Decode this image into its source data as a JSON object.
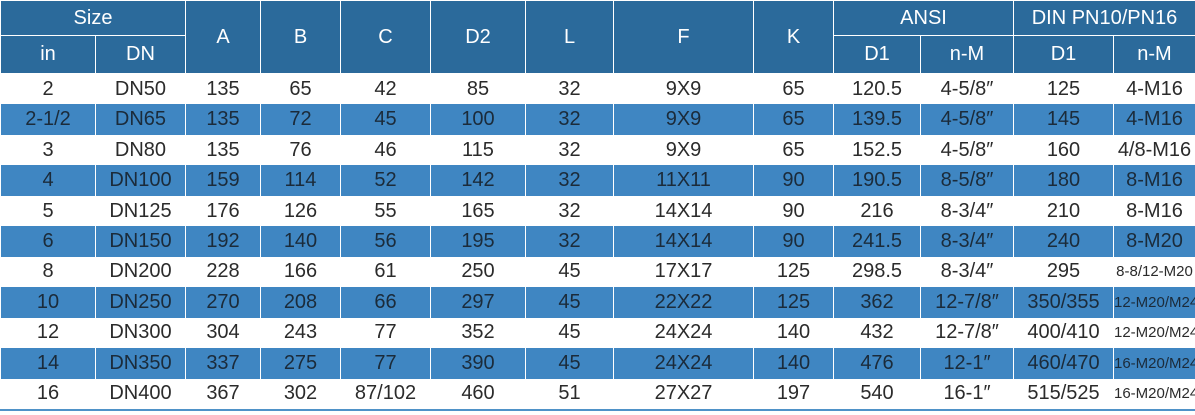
{
  "header": {
    "size": "Size",
    "in": "in",
    "dn": "DN",
    "a": "A",
    "b": "B",
    "c": "C",
    "d2": "D2",
    "l": "L",
    "f": "F",
    "k": "K",
    "ansi": "ANSI",
    "din": "DIN PN10/PN16",
    "ansi_d1": "D1",
    "ansi_nm": "n-M",
    "din_d1": "D1",
    "din_nm": "n-M"
  },
  "rows": [
    {
      "in": "2",
      "dn": "DN50",
      "a": "135",
      "b": "65",
      "c": "42",
      "d2": "85",
      "l": "32",
      "f": "9X9",
      "k": "65",
      "ansi_d1": "120.5",
      "ansi_nm": "4-5/8″",
      "din_d1": "125",
      "din_nm": "4-M16"
    },
    {
      "in": "2-1/2",
      "dn": "DN65",
      "a": "135",
      "b": "72",
      "c": "45",
      "d2": "100",
      "l": "32",
      "f": "9X9",
      "k": "65",
      "ansi_d1": "139.5",
      "ansi_nm": "4-5/8″",
      "din_d1": "145",
      "din_nm": "4-M16"
    },
    {
      "in": "3",
      "dn": "DN80",
      "a": "135",
      "b": "76",
      "c": "46",
      "d2": "115",
      "l": "32",
      "f": "9X9",
      "k": "65",
      "ansi_d1": "152.5",
      "ansi_nm": "4-5/8″",
      "din_d1": "160",
      "din_nm": "4/8-M16"
    },
    {
      "in": "4",
      "dn": "DN100",
      "a": "159",
      "b": "114",
      "c": "52",
      "d2": "142",
      "l": "32",
      "f": "11X11",
      "k": "90",
      "ansi_d1": "190.5",
      "ansi_nm": "8-5/8″",
      "din_d1": "180",
      "din_nm": "8-M16"
    },
    {
      "in": "5",
      "dn": "DN125",
      "a": "176",
      "b": "126",
      "c": "55",
      "d2": "165",
      "l": "32",
      "f": "14X14",
      "k": "90",
      "ansi_d1": "216",
      "ansi_nm": "8-3/4″",
      "din_d1": "210",
      "din_nm": "8-M16"
    },
    {
      "in": "6",
      "dn": "DN150",
      "a": "192",
      "b": "140",
      "c": "56",
      "d2": "195",
      "l": "32",
      "f": "14X14",
      "k": "90",
      "ansi_d1": "241.5",
      "ansi_nm": "8-3/4″",
      "din_d1": "240",
      "din_nm": "8-M20"
    },
    {
      "in": "8",
      "dn": "DN200",
      "a": "228",
      "b": "166",
      "c": "61",
      "d2": "250",
      "l": "45",
      "f": "17X17",
      "k": "125",
      "ansi_d1": "298.5",
      "ansi_nm": "8-3/4″",
      "din_d1": "295",
      "din_nm": "8-8/12-M20"
    },
    {
      "in": "10",
      "dn": "DN250",
      "a": "270",
      "b": "208",
      "c": "66",
      "d2": "297",
      "l": "45",
      "f": "22X22",
      "k": "125",
      "ansi_d1": "362",
      "ansi_nm": "12-7/8″",
      "din_d1": "350/355",
      "din_nm": "12-M20/M24"
    },
    {
      "in": "12",
      "dn": "DN300",
      "a": "304",
      "b": "243",
      "c": "77",
      "d2": "352",
      "l": "45",
      "f": "24X24",
      "k": "140",
      "ansi_d1": "432",
      "ansi_nm": "12-7/8″",
      "din_d1": "400/410",
      "din_nm": "12-M20/M24"
    },
    {
      "in": "14",
      "dn": "DN350",
      "a": "337",
      "b": "275",
      "c": "77",
      "d2": "390",
      "l": "45",
      "f": "24X24",
      "k": "140",
      "ansi_d1": "476",
      "ansi_nm": "12-1″",
      "din_d1": "460/470",
      "din_nm": "16-M20/M24"
    },
    {
      "in": "16",
      "dn": "DN400",
      "a": "367",
      "b": "302",
      "c": "87/102",
      "d2": "460",
      "l": "51",
      "f": "27X27",
      "k": "197",
      "ansi_d1": "540",
      "ansi_nm": "16-1″",
      "din_d1": "515/525",
      "din_nm": "16-M20/M24"
    }
  ],
  "colors": {
    "header_bg": "#2b6a9b",
    "stripe_bg": "#3f86c2",
    "text": "#2b2b2b",
    "header_text": "#ffffff"
  }
}
